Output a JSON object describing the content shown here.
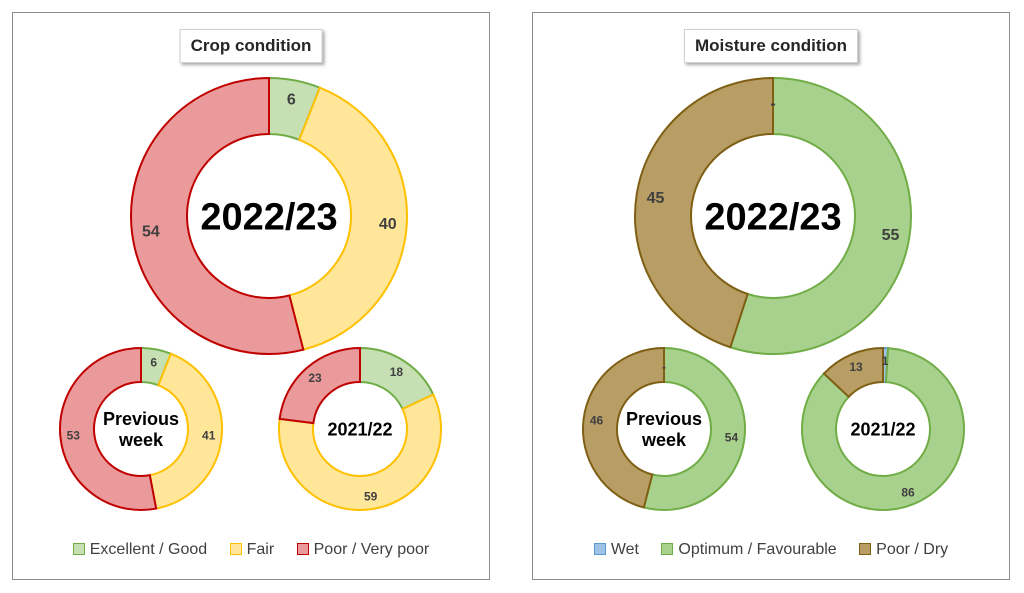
{
  "chart_data": [
    {
      "type": "donut",
      "title": "Crop condition",
      "categories": [
        "Excellent / Good",
        "Fair",
        "Poor / Very poor"
      ],
      "colors": {
        "fill": [
          "#c6e0b4",
          "#ffe699",
          "#ea9a9a"
        ],
        "stroke": [
          "#70ad47",
          "#ffc000",
          "#c00000"
        ]
      },
      "donuts": [
        {
          "label": "2022/23",
          "values": [
            6,
            40,
            54
          ],
          "value_labels": [
            "6",
            "40",
            "54"
          ]
        },
        {
          "label": "Previous week",
          "values": [
            6,
            41,
            53
          ],
          "value_labels": [
            "6",
            "41",
            "53"
          ]
        },
        {
          "label": "2021/22",
          "values": [
            18,
            59,
            23
          ],
          "value_labels": [
            "18",
            "59",
            "23"
          ]
        }
      ],
      "legend_position": "bottom"
    },
    {
      "type": "donut",
      "title": "Moisture condition",
      "categories": [
        "Wet",
        "Optimum / Favourable",
        "Poor / Dry"
      ],
      "colors": {
        "fill": [
          "#9dc3e6",
          "#a9d18e",
          "#b89e64"
        ],
        "stroke": [
          "#5b9bd5",
          "#70ad47",
          "#7f5f14"
        ]
      },
      "donuts": [
        {
          "label": "2022/23",
          "values": [
            0,
            55,
            45
          ],
          "value_labels": [
            "-",
            "55",
            "45"
          ]
        },
        {
          "label": "Previous week",
          "values": [
            0,
            54,
            46
          ],
          "value_labels": [
            "-",
            "54",
            "46"
          ]
        },
        {
          "label": "2021/22",
          "values": [
            1,
            86,
            13
          ],
          "value_labels": [
            "1",
            "86",
            "13"
          ]
        }
      ],
      "legend_position": "bottom"
    }
  ]
}
